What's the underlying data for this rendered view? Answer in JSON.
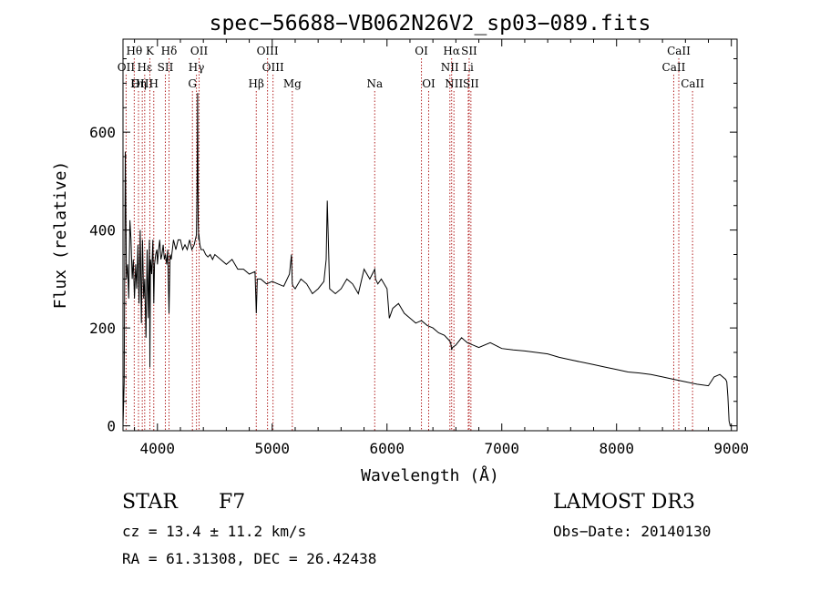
{
  "chart_data": {
    "type": "line",
    "title": "spec−56688−VB062N26V2_sp03−089.fits",
    "xlabel": "Wavelength (Å)",
    "ylabel": "Flux (relative)",
    "xlim": [
      3700,
      9050
    ],
    "ylim": [
      -10,
      790
    ],
    "x_ticks": [
      4000,
      5000,
      6000,
      7000,
      8000,
      9000
    ],
    "y_ticks": [
      0,
      200,
      400,
      600
    ],
    "grid": false,
    "series": [
      {
        "name": "flux",
        "x": [
          3700,
          3710,
          3720,
          3730,
          3740,
          3750,
          3760,
          3770,
          3780,
          3790,
          3800,
          3810,
          3820,
          3830,
          3840,
          3850,
          3860,
          3870,
          3880,
          3890,
          3900,
          3910,
          3920,
          3930,
          3934,
          3940,
          3950,
          3960,
          3968,
          3975,
          3985,
          3995,
          4000,
          4010,
          4020,
          4030,
          4040,
          4050,
          4060,
          4070,
          4080,
          4090,
          4101,
          4110,
          4120,
          4130,
          4140,
          4160,
          4180,
          4200,
          4220,
          4240,
          4260,
          4280,
          4300,
          4320,
          4340,
          4345,
          4350,
          4355,
          4360,
          4362,
          4365,
          4370,
          4380,
          4400,
          4420,
          4440,
          4460,
          4480,
          4500,
          4550,
          4600,
          4650,
          4700,
          4750,
          4800,
          4850,
          4861,
          4870,
          4900,
          4950,
          5000,
          5050,
          5100,
          5150,
          5168,
          5175,
          5183,
          5200,
          5250,
          5300,
          5350,
          5400,
          5450,
          5470,
          5480,
          5500,
          5550,
          5600,
          5650,
          5700,
          5750,
          5800,
          5850,
          5893,
          5900,
          5920,
          5950,
          6000,
          6020,
          6050,
          6100,
          6150,
          6200,
          6250,
          6300,
          6350,
          6400,
          6450,
          6500,
          6540,
          6555,
          6563,
          6570,
          6600,
          6650,
          6700,
          6750,
          6800,
          6900,
          7000,
          7100,
          7200,
          7300,
          7400,
          7500,
          7600,
          7700,
          7800,
          7900,
          8000,
          8100,
          8200,
          8300,
          8400,
          8500,
          8600,
          8700,
          8800,
          8850,
          8900,
          8950,
          8960,
          8970,
          8980,
          8990,
          9000
        ],
        "values": [
          0,
          90,
          560,
          300,
          330,
          260,
          420,
          380,
          300,
          340,
          260,
          330,
          280,
          370,
          250,
          400,
          210,
          380,
          260,
          300,
          180,
          360,
          220,
          380,
          120,
          340,
          310,
          380,
          250,
          330,
          350,
          360,
          330,
          360,
          380,
          340,
          350,
          370,
          340,
          350,
          330,
          360,
          230,
          350,
          340,
          360,
          380,
          360,
          380,
          380,
          360,
          370,
          360,
          380,
          360,
          370,
          390,
          480,
          680,
          420,
          380,
          390,
          380,
          370,
          360,
          360,
          350,
          345,
          350,
          340,
          350,
          340,
          330,
          340,
          320,
          320,
          310,
          315,
          230,
          300,
          300,
          290,
          295,
          290,
          285,
          310,
          350,
          290,
          285,
          280,
          300,
          290,
          270,
          280,
          295,
          340,
          460,
          280,
          270,
          280,
          300,
          290,
          270,
          320,
          300,
          320,
          300,
          290,
          300,
          280,
          220,
          240,
          250,
          230,
          220,
          210,
          215,
          205,
          200,
          190,
          185,
          175,
          170,
          155,
          160,
          165,
          180,
          170,
          165,
          160,
          170,
          158,
          155,
          153,
          150,
          147,
          140,
          135,
          130,
          125,
          120,
          115,
          110,
          108,
          105,
          100,
          95,
          90,
          85,
          82,
          100,
          105,
          95,
          90,
          60,
          10,
          0,
          0
        ]
      }
    ],
    "lines_top": [
      {
        "label": "Hθ",
        "wavelength": 3798
      },
      {
        "label": "K",
        "wavelength": 3934
      },
      {
        "label": "Hδ",
        "wavelength": 4101
      },
      {
        "label": "OII",
        "wavelength": 4363
      },
      {
        "label": "OIII",
        "wavelength": 4959
      },
      {
        "label": "OI",
        "wavelength": 6300
      },
      {
        "label": "Hα",
        "wavelength": 6563
      },
      {
        "label": "SII",
        "wavelength": 6716
      },
      {
        "label": "CaII",
        "wavelength": 8542
      }
    ],
    "lines_mid": [
      {
        "label": "OII",
        "wavelength": 3727
      },
      {
        "label": "Hε",
        "wavelength": 3889
      },
      {
        "label": "SII",
        "wavelength": 4069
      },
      {
        "label": "Hγ",
        "wavelength": 4340
      },
      {
        "label": "OIII",
        "wavelength": 5007
      },
      {
        "label": "NII",
        "wavelength": 6548
      },
      {
        "label": "Li",
        "wavelength": 6708
      },
      {
        "label": "CaII",
        "wavelength": 8498
      }
    ],
    "lines_bot": [
      {
        "label": "OIII",
        "wavelength": 3868
      },
      {
        "label": "Hη",
        "wavelength": 3835
      },
      {
        "label": "H",
        "wavelength": 3968
      },
      {
        "label": "G",
        "wavelength": 4305
      },
      {
        "label": "Hβ",
        "wavelength": 4861
      },
      {
        "label": "Mg",
        "wavelength": 5175
      },
      {
        "label": "Na",
        "wavelength": 5893
      },
      {
        "label": "OI",
        "wavelength": 6363
      },
      {
        "label": "NII",
        "wavelength": 6583
      },
      {
        "label": "SII",
        "wavelength": 6731
      },
      {
        "label": "CaII",
        "wavelength": 8662
      }
    ],
    "na_label": "Na"
  },
  "info": {
    "class": "STAR",
    "subclass": "F7",
    "survey": "LAMOST DR3",
    "cz": "cz = 13.4 ± 11.2 km/s",
    "obs_date": "Obs−Date: 20140130",
    "radec": "RA =  61.31308, DEC =  26.42438"
  }
}
